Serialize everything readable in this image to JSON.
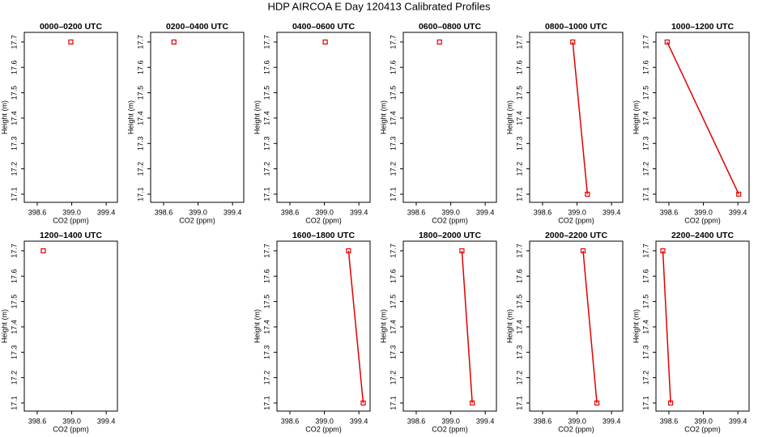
{
  "title": "HDP AIRCOA E  Day 120413  Calibrated Profiles",
  "chart_data": [
    {
      "type": "line",
      "title": "0000–0200 UTC",
      "xlabel": "CO2 (ppm)",
      "ylabel": "Height (m)",
      "color": "#e00000",
      "x": [
        398.99
      ],
      "values": [
        17.7
      ],
      "xlim": [
        398.45,
        399.53
      ],
      "ylim": [
        17.068,
        17.738
      ],
      "xticks": [
        398.6,
        {
          "value": 399,
          "label": "399.0"
        },
        399.4
      ],
      "yticks": [
        17.1,
        17.2,
        17.3,
        17.4,
        17.5,
        17.6,
        17.7
      ]
    },
    {
      "type": "line",
      "title": "0200–0400 UTC",
      "xlabel": "CO2 (ppm)",
      "ylabel": "Height (m)",
      "color": "#e00000",
      "x": [
        398.72
      ],
      "values": [
        17.7
      ],
      "xlim": [
        398.45,
        399.53
      ],
      "ylim": [
        17.068,
        17.738
      ],
      "xticks": [
        398.6,
        {
          "value": 399,
          "label": "399.0"
        },
        399.4
      ],
      "yticks": [
        17.1,
        17.2,
        17.3,
        17.4,
        17.5,
        17.6,
        17.7
      ]
    },
    {
      "type": "line",
      "title": "0400–0600 UTC",
      "xlabel": "CO2 (ppm)",
      "ylabel": "Height (m)",
      "color": "#e00000",
      "x": [
        399.01
      ],
      "values": [
        17.7
      ],
      "xlim": [
        398.45,
        399.53
      ],
      "ylim": [
        17.068,
        17.738
      ],
      "xticks": [
        398.6,
        {
          "value": 399,
          "label": "399.0"
        },
        399.4
      ],
      "yticks": [
        17.1,
        17.2,
        17.3,
        17.4,
        17.5,
        17.6,
        17.7
      ]
    },
    {
      "type": "line",
      "title": "0600–0800 UTC",
      "xlabel": "CO2 (ppm)",
      "ylabel": "Height (m)",
      "color": "#e00000",
      "x": [
        398.87
      ],
      "values": [
        17.7
      ],
      "xlim": [
        398.45,
        399.53
      ],
      "ylim": [
        17.068,
        17.738
      ],
      "xticks": [
        398.6,
        {
          "value": 399,
          "label": "399.0"
        },
        399.4
      ],
      "yticks": [
        17.1,
        17.2,
        17.3,
        17.4,
        17.5,
        17.6,
        17.7
      ]
    },
    {
      "type": "line",
      "title": "0800–1000 UTC",
      "xlabel": "CO2 (ppm)",
      "ylabel": "Height (m)",
      "color": "#e00000",
      "x": [
        398.95,
        399.12
      ],
      "values": [
        17.7,
        17.1
      ],
      "xlim": [
        398.45,
        399.53
      ],
      "ylim": [
        17.068,
        17.738
      ],
      "xticks": [
        398.6,
        {
          "value": 399,
          "label": "399.0"
        },
        399.4
      ],
      "yticks": [
        17.1,
        17.2,
        17.3,
        17.4,
        17.5,
        17.6,
        17.7
      ]
    },
    {
      "type": "line",
      "title": "1000–1200 UTC",
      "xlabel": "CO2 (ppm)",
      "ylabel": "Height (m)",
      "color": "#e00000",
      "x": [
        398.58,
        399.41
      ],
      "values": [
        17.7,
        17.1
      ],
      "xlim": [
        398.45,
        399.53
      ],
      "ylim": [
        17.068,
        17.738
      ],
      "xticks": [
        398.6,
        {
          "value": 399,
          "label": "399.0"
        },
        399.4
      ],
      "yticks": [
        17.1,
        17.2,
        17.3,
        17.4,
        17.5,
        17.6,
        17.7
      ]
    },
    {
      "type": "line",
      "title": "1200–1400 UTC",
      "xlabel": "CO2 (ppm)",
      "ylabel": "Height (m)",
      "color": "#e00000",
      "x": [
        398.67
      ],
      "values": [
        17.7
      ],
      "xlim": [
        398.45,
        399.53
      ],
      "ylim": [
        17.068,
        17.738
      ],
      "xticks": [
        398.6,
        {
          "value": 399,
          "label": "399.0"
        },
        399.4
      ],
      "yticks": [
        17.1,
        17.2,
        17.3,
        17.4,
        17.5,
        17.6,
        17.7
      ]
    },
    {
      "type": "line",
      "title": "1600–1800 UTC",
      "xlabel": "CO2 (ppm)",
      "ylabel": "Height (m)",
      "color": "#e00000",
      "x": [
        399.28,
        399.45
      ],
      "values": [
        17.7,
        17.1
      ],
      "xlim": [
        398.45,
        399.53
      ],
      "ylim": [
        17.068,
        17.738
      ],
      "xticks": [
        398.6,
        {
          "value": 399,
          "label": "399.0"
        },
        399.4
      ],
      "yticks": [
        17.1,
        17.2,
        17.3,
        17.4,
        17.5,
        17.6,
        17.7
      ]
    },
    {
      "type": "line",
      "title": "1800–2000 UTC",
      "xlabel": "CO2 (ppm)",
      "ylabel": "Height (m)",
      "color": "#e00000",
      "x": [
        399.13,
        399.25
      ],
      "values": [
        17.7,
        17.1
      ],
      "xlim": [
        398.45,
        399.53
      ],
      "ylim": [
        17.068,
        17.738
      ],
      "xticks": [
        398.6,
        {
          "value": 399,
          "label": "399.0"
        },
        399.4
      ],
      "yticks": [
        17.1,
        17.2,
        17.3,
        17.4,
        17.5,
        17.6,
        17.7
      ]
    },
    {
      "type": "line",
      "title": "2000–2200 UTC",
      "xlabel": "CO2 (ppm)",
      "ylabel": "Height (m)",
      "color": "#e00000",
      "x": [
        399.07,
        399.23
      ],
      "values": [
        17.7,
        17.1
      ],
      "xlim": [
        398.45,
        399.53
      ],
      "ylim": [
        17.068,
        17.738
      ],
      "xticks": [
        398.6,
        {
          "value": 399,
          "label": "399.0"
        },
        399.4
      ],
      "yticks": [
        17.1,
        17.2,
        17.3,
        17.4,
        17.5,
        17.6,
        17.7
      ]
    },
    {
      "type": "line",
      "title": "2200–2400 UTC",
      "xlabel": "CO2 (ppm)",
      "ylabel": "Height (m)",
      "color": "#e00000",
      "x": [
        398.53,
        398.62
      ],
      "values": [
        17.7,
        17.1
      ],
      "xlim": [
        398.45,
        399.53
      ],
      "ylim": [
        17.068,
        17.738
      ],
      "xticks": [
        398.6,
        {
          "value": 399,
          "label": "399.0"
        },
        399.4
      ],
      "yticks": [
        17.1,
        17.2,
        17.3,
        17.4,
        17.5,
        17.6,
        17.7
      ]
    }
  ]
}
